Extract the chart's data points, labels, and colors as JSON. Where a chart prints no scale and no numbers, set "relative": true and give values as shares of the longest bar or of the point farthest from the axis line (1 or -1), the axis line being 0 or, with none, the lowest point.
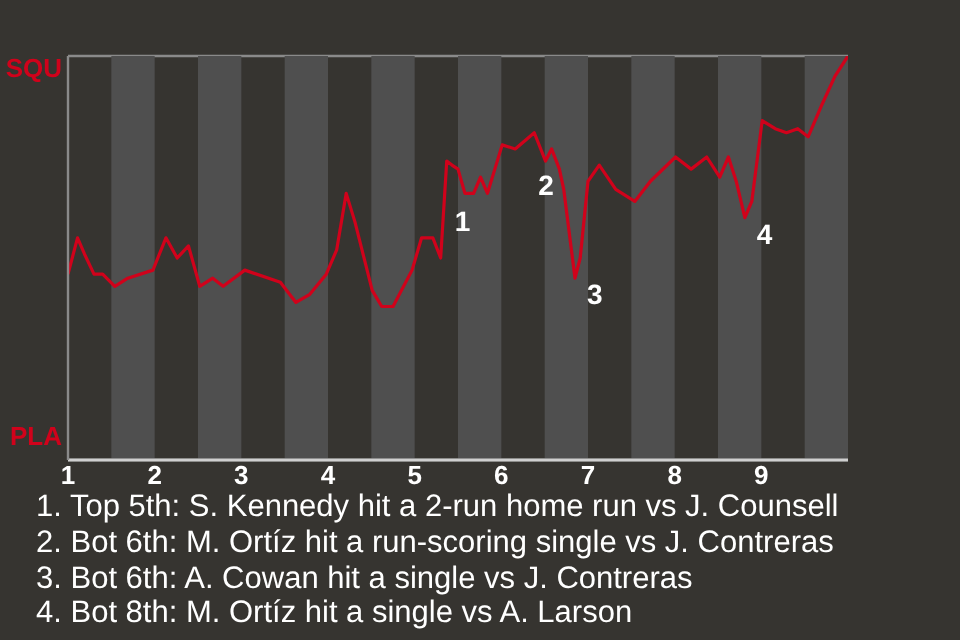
{
  "chart_data": {
    "type": "line",
    "relative": true,
    "x": [
      1,
      1.11,
      1.19,
      1.3,
      1.4,
      1.54,
      1.69,
      1.98,
      2.13,
      2.26,
      2.39,
      2.52,
      2.67,
      2.79,
      3.04,
      3.45,
      3.63,
      3.79,
      3.98,
      4.1,
      4.21,
      4.31,
      4.51,
      4.62,
      4.75,
      4.97,
      5.08,
      5.21,
      5.3,
      5.37,
      5.43,
      5.5,
      5.58,
      5.68,
      5.76,
      5.84,
      6.01,
      6.16,
      6.38,
      6.51,
      6.58,
      6.67,
      6.72,
      6.85,
      6.91,
      7,
      7.13,
      7.32,
      7.54,
      7.72,
      8.01,
      8.19,
      8.37,
      8.52,
      8.62,
      8.71,
      8.81,
      8.89,
      9.01,
      9.16,
      9.29,
      9.42,
      9.54,
      9.7,
      9.85,
      10
    ],
    "series": [
      {
        "color": "#d0021b",
        "values": [
          0.46,
          0.55,
          0.51,
          0.46,
          0.46,
          0.43,
          0.45,
          0.47,
          0.55,
          0.5,
          0.53,
          0.43,
          0.45,
          0.43,
          0.47,
          0.44,
          0.39,
          0.41,
          0.46,
          0.52,
          0.66,
          0.59,
          0.42,
          0.38,
          0.38,
          0.47,
          0.55,
          0.55,
          0.5,
          0.74,
          0.73,
          0.72,
          0.66,
          0.66,
          0.7,
          0.66,
          0.78,
          0.77,
          0.81,
          0.74,
          0.77,
          0.72,
          0.67,
          0.45,
          0.5,
          0.69,
          0.73,
          0.67,
          0.64,
          0.69,
          0.75,
          0.72,
          0.75,
          0.7,
          0.75,
          0.69,
          0.6,
          0.64,
          0.84,
          0.82,
          0.81,
          0.82,
          0.8,
          0.88,
          0.95,
          1
        ]
      }
    ],
    "xlim": [
      1,
      10
    ],
    "xticks": [
      1,
      2,
      3,
      4,
      5,
      6,
      7,
      8,
      9
    ],
    "grid": "y",
    "legend": false,
    "marker": "none",
    "line_style": "solid",
    "bands": [
      {
        "axis": "x",
        "from": 1.5,
        "to": 2,
        "color": "#4f4f4f"
      },
      {
        "axis": "x",
        "from": 2.5,
        "to": 3,
        "color": "#4f4f4f"
      },
      {
        "axis": "x",
        "from": 3.5,
        "to": 4,
        "color": "#4f4f4f"
      },
      {
        "axis": "x",
        "from": 4.5,
        "to": 5,
        "color": "#4f4f4f"
      },
      {
        "axis": "x",
        "from": 5.5,
        "to": 6,
        "color": "#4f4f4f"
      },
      {
        "axis": "x",
        "from": 6.5,
        "to": 7,
        "color": "#4f4f4f"
      },
      {
        "axis": "x",
        "from": 7.5,
        "to": 8,
        "color": "#4f4f4f"
      },
      {
        "axis": "x",
        "from": 8.5,
        "to": 9,
        "color": "#4f4f4f"
      },
      {
        "axis": "x",
        "from": 9.5,
        "to": 10,
        "color": "#4f4f4f"
      }
    ],
    "annotations": [
      "SQU",
      "PLA",
      {
        "text": "1",
        "x": 5.37,
        "y": 0.74
      },
      {
        "text": "2",
        "x": 6.72,
        "y": 0.67
      },
      {
        "text": "3",
        "x": 6.85,
        "y": 0.45
      },
      {
        "text": "4",
        "x": 8.81,
        "y": 0.6
      },
      "1. Top 5th: S. Kennedy hit a 2-run home run vs J. Counsell",
      "2. Bot 6th: M. Ortíz hit a run-scoring single vs J. Contreras",
      "3. Bot 6th: A. Cowan hit a single vs J. Contreras",
      "4. Bot 8th: M. Ortíz hit a single vs A. Larson"
    ]
  }
}
